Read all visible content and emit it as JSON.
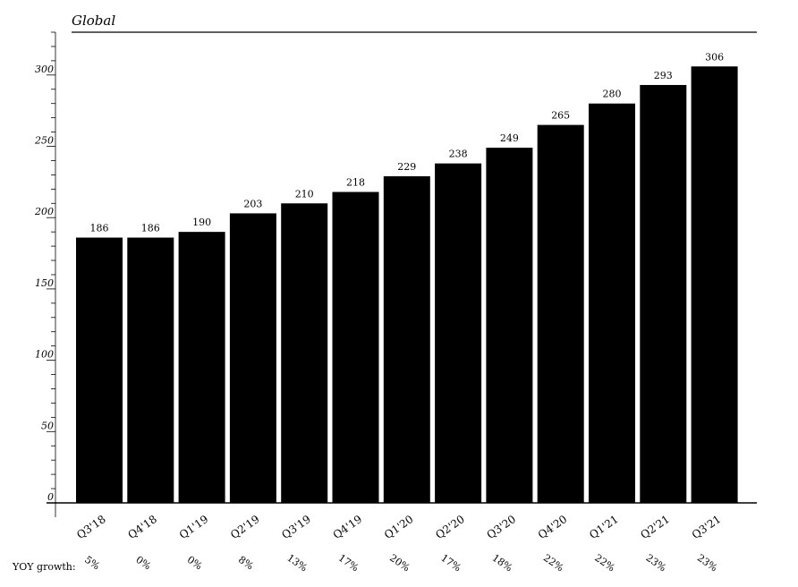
{
  "chart_data": {
    "type": "bar",
    "title": "Global",
    "categories": [
      "Q3'18",
      "Q4'18",
      "Q1'19",
      "Q2'19",
      "Q3'19",
      "Q4'19",
      "Q1'20",
      "Q2'20",
      "Q3'20",
      "Q4'20",
      "Q1'21",
      "Q2'21",
      "Q3'21"
    ],
    "values": [
      186,
      186,
      190,
      203,
      210,
      218,
      229,
      238,
      249,
      265,
      280,
      293,
      306
    ],
    "ylim": [
      0,
      330
    ],
    "yticks": [
      0,
      50,
      100,
      150,
      200,
      250,
      300
    ],
    "yoy_label": "YOY growth:",
    "yoy_growth": [
      "5%",
      "0%",
      "0%",
      "8%",
      "13%",
      "17%",
      "20%",
      "17%",
      "18%",
      "22%",
      "22%",
      "23%",
      "23%"
    ],
    "bar_color": "#000000",
    "grid": false,
    "legend": "none"
  }
}
